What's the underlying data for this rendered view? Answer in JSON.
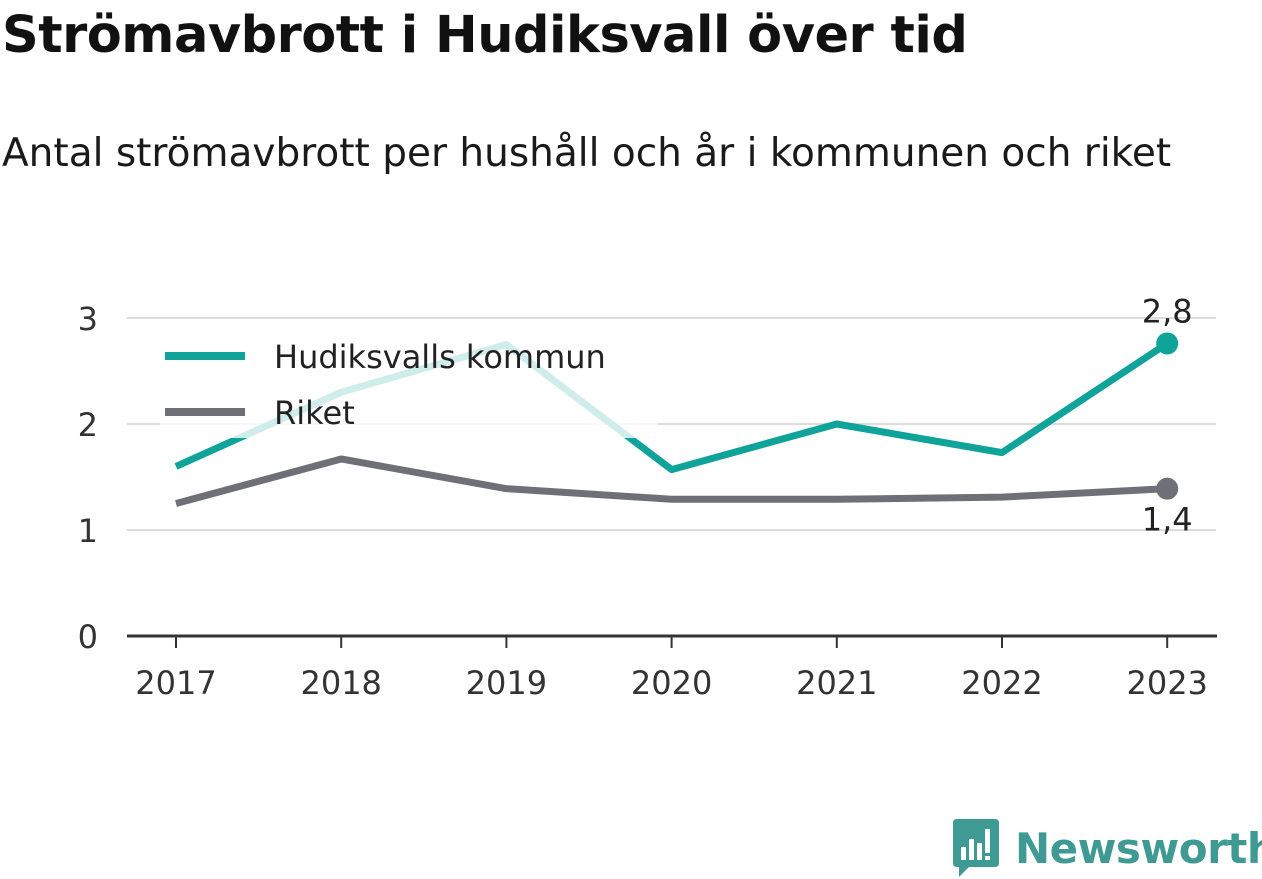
{
  "title": "Strömavbrott i Hudiksvall över tid",
  "subtitle": "Antal strömavbrott per hushåll och år i kommunen och riket",
  "brand": {
    "name": "Newsworthy",
    "icon": "newsworthy-chart-icon",
    "color": "#3f9a93"
  },
  "chart_data": {
    "type": "line",
    "title": "Strömavbrott i Hudiksvall över tid",
    "subtitle": "Antal strömavbrott per hushåll och år i kommunen och riket",
    "xlabel": "",
    "ylabel": "",
    "categories": [
      "2017",
      "2018",
      "2019",
      "2020",
      "2021",
      "2022",
      "2023"
    ],
    "yticks": [
      "0",
      "1",
      "2",
      "3"
    ],
    "ylim": [
      0,
      3
    ],
    "grid": true,
    "legend_position": "top-left",
    "series": [
      {
        "name": "Hudiksvalls kommun",
        "values": [
          1.6,
          2.3,
          2.75,
          1.57,
          2.0,
          1.73,
          2.76
        ],
        "color": "#0fa39a",
        "faded_color": "#cfeceb",
        "end_label": "2,8"
      },
      {
        "name": "Riket",
        "values": [
          1.25,
          1.67,
          1.39,
          1.29,
          1.29,
          1.31,
          1.39
        ],
        "color": "#6f6f77",
        "end_label": "1,4"
      }
    ]
  }
}
